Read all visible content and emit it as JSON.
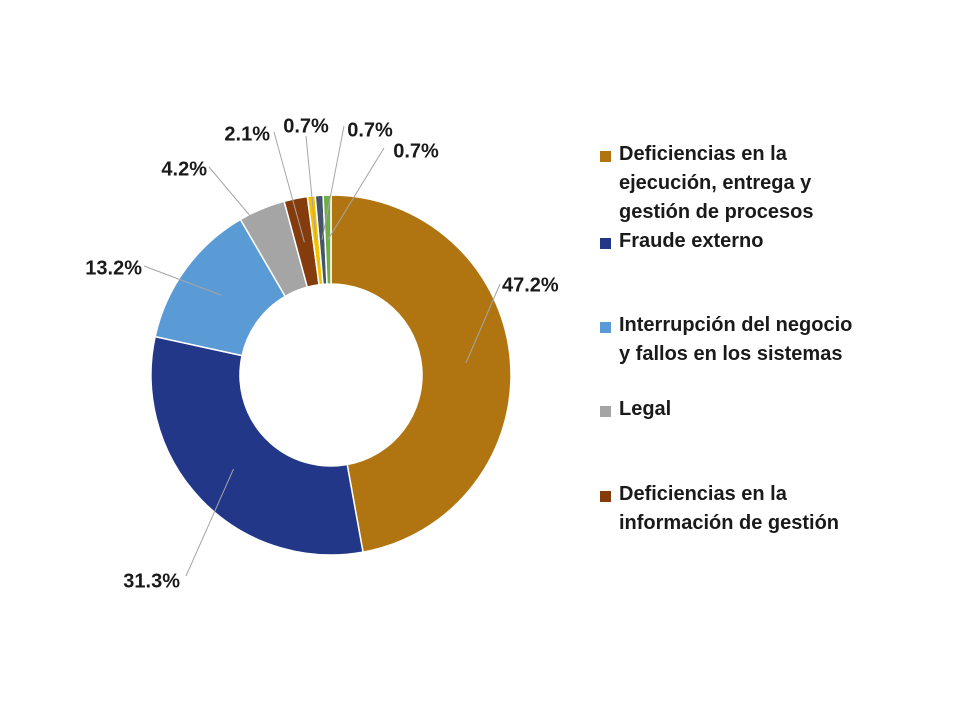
{
  "chart_data": {
    "type": "pie",
    "variant": "donut",
    "slices": [
      {
        "label": "Deficiencias en la ejecución, entrega y gestión de procesos",
        "value": 47.2,
        "value_label": "47.2%",
        "color": "#B07510"
      },
      {
        "label": "Fraude externo",
        "value": 31.3,
        "value_label": "31.3%",
        "color": "#233789"
      },
      {
        "label": "Interrupción del negocio y fallos en los sistemas",
        "value": 13.2,
        "value_label": "13.2%",
        "color": "#5B9BD5"
      },
      {
        "label": "Legal",
        "value": 4.2,
        "value_label": "4.2%",
        "color": "#A5A5A5"
      },
      {
        "label": "Deficiencias en la información de gestión",
        "value": 2.1,
        "value_label": "2.1%",
        "color": "#843C0C"
      },
      {
        "label": "",
        "value": 0.7,
        "value_label": "0.7%",
        "color": "#F5C200"
      },
      {
        "label": "",
        "value": 0.7,
        "value_label": "0.7%",
        "color": "#44546A"
      },
      {
        "label": "",
        "value": 0.7,
        "value_label": "0.7%",
        "color": "#70AD47"
      }
    ],
    "legend": {
      "placement": "right",
      "entries": [
        {
          "text": "Deficiencias en la\nejecución, entrega y\ngestión de procesos",
          "color": "#B07510"
        },
        {
          "text": "Fraude externo",
          "color": "#233789"
        },
        {
          "text": "Interrupción del negocio\ny fallos en los sistemas",
          "color": "#5B9BD5"
        },
        {
          "text": "Legal",
          "color": "#A5A5A5"
        },
        {
          "text": "Deficiencias en la\ninformación de gestión",
          "color": "#843C0C"
        }
      ]
    }
  }
}
